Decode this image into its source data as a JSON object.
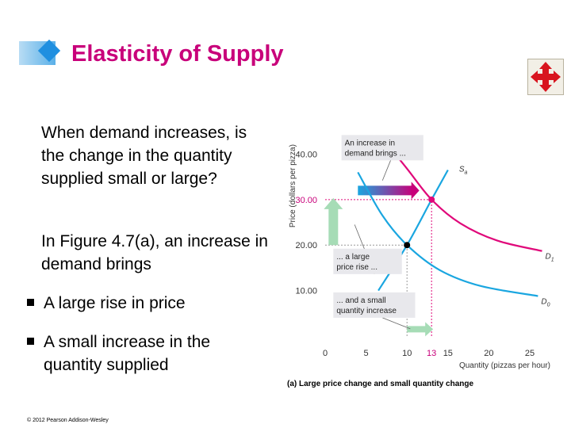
{
  "slide": {
    "title": "Elasticity of Supply",
    "paragraph1": "When demand increases, is the change in the quantity supplied small or large?",
    "paragraph2": "In Figure 4.7(a), an increase in demand brings",
    "bullets": [
      "A large rise in price",
      "A small increase in the quantity supplied"
    ],
    "copyright": "© 2012 Pearson Addison-Wesley",
    "nav_icon": "move-arrows-icon"
  },
  "chart_data": {
    "type": "line",
    "caption": "(a) Large price change and small quantity change",
    "xlabel": "Quantity (pizzas per hour)",
    "ylabel": "Price (dollars per pizza)",
    "xlim": [
      0,
      28
    ],
    "ylim": [
      0,
      46
    ],
    "x_ticks": [
      {
        "value": 0,
        "label": "0"
      },
      {
        "value": 5,
        "label": "5"
      },
      {
        "value": 10,
        "label": "10"
      },
      {
        "value": 13,
        "label": "13"
      },
      {
        "value": 15,
        "label": "15"
      },
      {
        "value": 20,
        "label": "20"
      },
      {
        "value": 25,
        "label": "25"
      }
    ],
    "y_ticks": [
      {
        "value": 10,
        "label": "10.00"
      },
      {
        "value": 20,
        "label": "20.00"
      },
      {
        "value": 30,
        "label": "30.00"
      },
      {
        "value": 40,
        "label": "40.00"
      }
    ],
    "series": [
      {
        "name": "S_a",
        "label_main": "S",
        "label_sub": "a",
        "color": "#1aa6e0",
        "points": [
          [
            6.5,
            10.0
          ],
          [
            10.0,
            20.0
          ],
          [
            13.0,
            30.0
          ],
          [
            15.0,
            36.5
          ]
        ]
      },
      {
        "name": "D_1",
        "label_main": "D",
        "label_sub": "1",
        "color": "#e0087a",
        "points": [
          [
            7.0,
            43.5
          ],
          [
            10.0,
            36.8
          ],
          [
            13.0,
            30.0
          ],
          [
            16.5,
            24.8
          ],
          [
            21.0,
            21.0
          ],
          [
            26.5,
            18.7
          ]
        ]
      },
      {
        "name": "D_0",
        "label_main": "D",
        "label_sub": "0",
        "color": "#1aa6e0",
        "points": [
          [
            4.0,
            36.0
          ],
          [
            7.0,
            26.5
          ],
          [
            10.0,
            20.0
          ],
          [
            14.0,
            14.5
          ],
          [
            19.0,
            11.0
          ],
          [
            26.0,
            8.8
          ]
        ]
      }
    ],
    "points_marked": [
      {
        "x": 10,
        "y": 20,
        "color": "#000000"
      },
      {
        "x": 13,
        "y": 30,
        "color": "#e0087a"
      }
    ],
    "guides": [
      {
        "from": [
          0,
          30
        ],
        "to": [
          13,
          30
        ],
        "color": "#e0087a"
      },
      {
        "from": [
          13,
          0
        ],
        "to": [
          13,
          30
        ],
        "color": "#e0087a"
      },
      {
        "from": [
          0,
          20
        ],
        "to": [
          10,
          20
        ],
        "color": "#9a9a9a"
      },
      {
        "from": [
          10,
          0
        ],
        "to": [
          10,
          20
        ],
        "color": "#9a9a9a"
      }
    ],
    "annotations": [
      {
        "id": "demand",
        "lines": [
          "An increase in",
          "demand brings ..."
        ],
        "box_x": 2.0,
        "box_y": 44.2,
        "pointer": [
          7.0,
          34.2
        ]
      },
      {
        "id": "price",
        "lines": [
          "... a large",
          "price rise ..."
        ],
        "box_x": 1.0,
        "box_y": 19.2,
        "pointer": [
          3.6,
          24.5
        ]
      },
      {
        "id": "quantity",
        "lines": [
          "... and a small",
          "quantity increase"
        ],
        "box_x": 1.0,
        "box_y": 9.6,
        "pointer": [
          10.4,
          1.6
        ]
      }
    ],
    "arrows": [
      {
        "id": "demand-shift-arrow",
        "from": [
          4.0,
          32.0
        ],
        "to": [
          11.5,
          32.0
        ]
      },
      {
        "id": "price-rise-arrow",
        "from": [
          1.0,
          20.0
        ],
        "to": [
          1.0,
          30.0
        ]
      },
      {
        "id": "quantity-increase-arrow",
        "from": [
          10.0,
          1.5
        ],
        "to": [
          13.0,
          1.5
        ]
      }
    ]
  }
}
